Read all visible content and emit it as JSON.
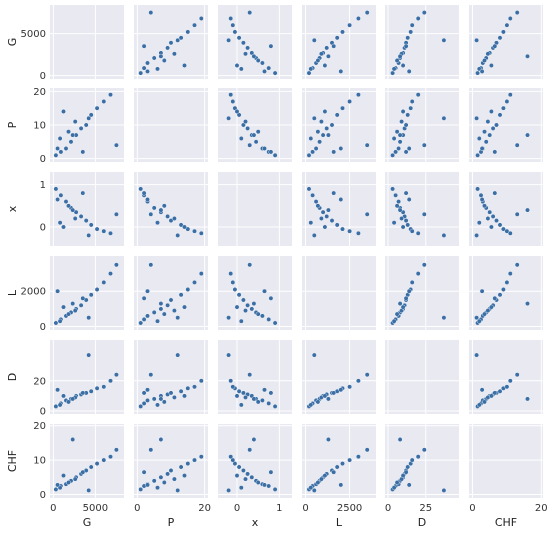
{
  "chart_data": {
    "type": "scatter",
    "kind": "pair-plot",
    "variables": [
      "G",
      "P",
      "x",
      "L",
      "D",
      "CHF"
    ],
    "ranges": {
      "G": [
        -400,
        8400
      ],
      "P": [
        -1,
        21
      ],
      "x": [
        -0.45,
        1.3
      ],
      "L": [
        -200,
        4000
      ],
      "D": [
        -2,
        47
      ],
      "CHF": [
        -1,
        20.5
      ]
    },
    "ticks": {
      "G": [
        0,
        5000
      ],
      "P": [
        0,
        10,
        20
      ],
      "x": [
        0,
        1
      ],
      "L": [
        0,
        2000
      ],
      "D": [
        0,
        20
      ],
      "CHF": [
        0,
        10,
        20
      ]
    },
    "x_ticks": {
      "G": [
        0,
        5000
      ],
      "P": [
        0,
        20
      ],
      "x": [
        0,
        1
      ],
      "L": [
        0,
        2500
      ],
      "D": [
        0,
        25
      ],
      "CHF": [
        0,
        20
      ]
    },
    "diagonal": "empty",
    "point_color": "#3a6ea5",
    "point_edge": "#ffffff",
    "panel_background": "#e8e9f1",
    "grid_color": "#ffffff",
    "grid": true,
    "sample_points": {
      "G": [
        300,
        900,
        1500,
        2100,
        2700,
        3300,
        3900,
        4500,
        5200,
        6000,
        6800,
        7500,
        800,
        1800,
        2600,
        1200,
        3500,
        500,
        4200,
        2300
      ],
      "P": [
        1,
        2,
        3,
        5,
        7,
        9,
        10,
        13,
        15,
        17,
        19,
        4,
        6,
        8,
        11,
        14,
        2,
        3,
        12,
        7
      ],
      "x": [
        0.9,
        0.75,
        0.6,
        0.45,
        0.35,
        0.25,
        0.15,
        0.05,
        -0.05,
        -0.1,
        -0.15,
        0.3,
        0.1,
        0.5,
        0.2,
        0.0,
        0.8,
        0.65,
        -0.2,
        0.4
      ],
      "L": [
        200,
        400,
        600,
        800,
        1000,
        1200,
        1500,
        1800,
        2100,
        2500,
        3000,
        3500,
        300,
        700,
        900,
        1100,
        1600,
        2000,
        500,
        1300
      ],
      "D": [
        3,
        5,
        7,
        8,
        10,
        11,
        12,
        13,
        15,
        16,
        20,
        24,
        4,
        6,
        9,
        10,
        12,
        14,
        37,
        8
      ],
      "CHF": [
        1.5,
        2.5,
        3,
        4,
        5,
        6,
        7,
        8,
        9,
        10,
        11,
        13,
        2,
        3.5,
        4.5,
        5.5,
        6.5,
        2.8,
        1.2,
        16
      ]
    }
  }
}
